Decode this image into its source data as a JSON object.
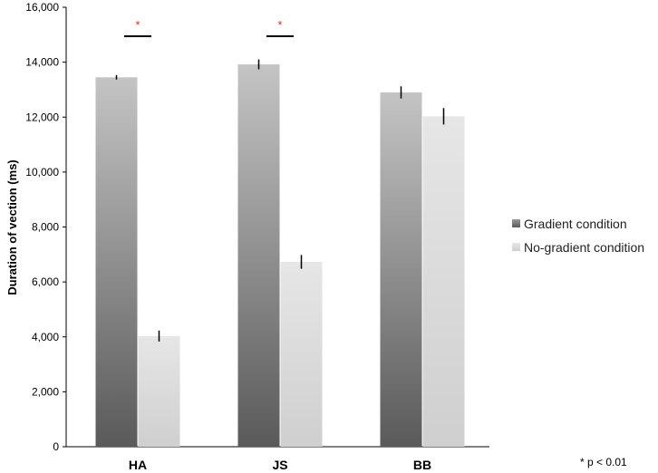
{
  "chart_data": {
    "type": "bar",
    "ylabel": "Duration of vection (ms)",
    "xlabel": "",
    "ylim": [
      0,
      16000
    ],
    "yticks": [
      "0",
      "2,000",
      "4,000",
      "6,000",
      "8,000",
      "10,000",
      "12,000",
      "14,000",
      "16,000"
    ],
    "categories": [
      "HA",
      "JS",
      "BB"
    ],
    "series": [
      {
        "name": "Gradient condition",
        "values": [
          13450,
          13920,
          12900
        ],
        "errors": [
          80,
          180,
          220
        ],
        "color": "#6f6f6f"
      },
      {
        "name": "No-gradient condition",
        "values": [
          4030,
          6730,
          12030
        ],
        "errors": [
          200,
          250,
          300
        ],
        "color": "#c8c8c8"
      }
    ],
    "significance": [
      {
        "category": "HA",
        "label": "*"
      },
      {
        "category": "JS",
        "label": "*"
      }
    ],
    "grid": false,
    "legend_position": "right"
  },
  "footnote": "* p < 0.01"
}
